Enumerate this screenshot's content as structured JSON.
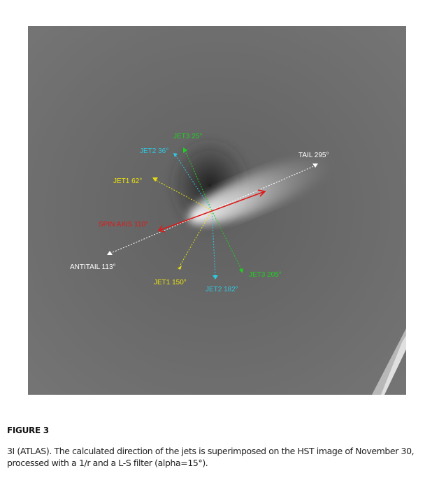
{
  "figure": {
    "labels": {
      "jet3_a": "JET3 25°",
      "jet2_a": "JET2 36°",
      "jet1_a": "JET1 62°",
      "tail": "TAIL 295°",
      "spin": "SPIN AXIS 110°",
      "antitail": "ANTITAIL  113°",
      "jet1_b": "JET1 150°",
      "jet2_b": "JET2 182°",
      "jet3_b": "JET3 205°"
    },
    "colors": {
      "jet1": "#e8e010",
      "jet2": "#30c8e0",
      "jet3": "#20d020",
      "tail": "#ffffff",
      "spin": "#e01818",
      "background": "#6e6e6e"
    }
  },
  "caption": {
    "title": "FIGURE  3",
    "text": "3I (ATLAS). The calculated direction of the jets is superimposed on the HST image of November 30, processed with a 1/r and a L-S filter (alpha=15°)."
  }
}
